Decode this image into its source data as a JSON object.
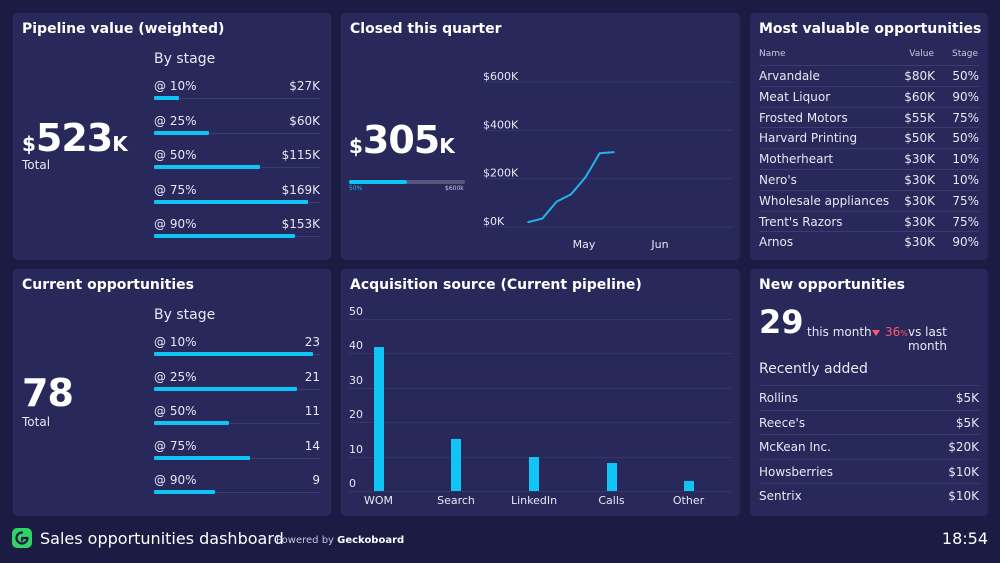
{
  "colors": {
    "background": "#1b1b44",
    "panel": "#28295a",
    "accent": "#0fc5f5",
    "down": "#ff5a6a",
    "logo": "#2fd463"
  },
  "pipeline": {
    "title": "Pipeline value (weighted)",
    "currency": "$",
    "value": "523",
    "suffix": "K",
    "total_label": "Total",
    "stage_head": "By stage",
    "stages": [
      {
        "label": "@ 10%",
        "value": "$27K",
        "frac": 0.15
      },
      {
        "label": "@ 25%",
        "value": "$60K",
        "frac": 0.33
      },
      {
        "label": "@ 50%",
        "value": "$115K",
        "frac": 0.64
      },
      {
        "label": "@ 75%",
        "value": "$169K",
        "frac": 0.93
      },
      {
        "label": "@ 90%",
        "value": "$153K",
        "frac": 0.85
      }
    ]
  },
  "closed": {
    "title": "Closed this quarter",
    "currency": "$",
    "value": "305",
    "suffix": "K",
    "progress": {
      "frac": 0.5,
      "start_label": "50%",
      "end_label": "$600k"
    },
    "chart_data": {
      "type": "line",
      "title": "Closed this quarter",
      "x": [
        "Apr 22",
        "Apr 26",
        "Apr 30",
        "May 4",
        "May 8",
        "May 12",
        "May 16"
      ],
      "values": [
        20,
        35,
        105,
        135,
        205,
        305,
        310
      ],
      "x_tick_labels": [
        "May",
        "Jun"
      ],
      "y_tick_labels": [
        "$600K",
        "$400K",
        "$200K",
        "$0K"
      ],
      "ylim": [
        0,
        600
      ]
    }
  },
  "valuable": {
    "title": "Most valuable opportunities",
    "headers": [
      "Name",
      "Value",
      "Stage"
    ],
    "rows": [
      {
        "name": "Arvandale",
        "value": "$80K",
        "stage": "50%"
      },
      {
        "name": "Meat Liquor",
        "value": "$60K",
        "stage": "90%"
      },
      {
        "name": "Frosted Motors",
        "value": "$55K",
        "stage": "75%"
      },
      {
        "name": "Harvard Printing",
        "value": "$50K",
        "stage": "50%"
      },
      {
        "name": "Motherheart",
        "value": "$30K",
        "stage": "10%"
      },
      {
        "name": "Nero's",
        "value": "$30K",
        "stage": "10%"
      },
      {
        "name": "Wholesale appliances",
        "value": "$30K",
        "stage": "75%"
      },
      {
        "name": "Trent's Razors",
        "value": "$30K",
        "stage": "75%"
      },
      {
        "name": "Arnos",
        "value": "$30K",
        "stage": "90%"
      }
    ]
  },
  "current": {
    "title": "Current opportunities",
    "value": "78",
    "total_label": "Total",
    "stage_head": "By stage",
    "stages": [
      {
        "label": "@ 10%",
        "value": "23",
        "frac": 0.96
      },
      {
        "label": "@ 25%",
        "value": "21",
        "frac": 0.86
      },
      {
        "label": "@ 50%",
        "value": "11",
        "frac": 0.45
      },
      {
        "label": "@ 75%",
        "value": "14",
        "frac": 0.58
      },
      {
        "label": "@ 90%",
        "value": "9",
        "frac": 0.37
      }
    ]
  },
  "acquisition": {
    "title": "Acquisition source (Current pipeline)",
    "chart_data": {
      "type": "bar",
      "title": "Acquisition source (Current pipeline)",
      "categories": [
        "WOM",
        "Search",
        "LinkedIn",
        "Calls",
        "Other"
      ],
      "values": [
        42,
        15,
        10,
        8,
        3
      ],
      "y_tick_labels": [
        "50",
        "40",
        "30",
        "20",
        "10",
        "0"
      ],
      "ylim": [
        0,
        50
      ]
    }
  },
  "newopp": {
    "title": "New opportunities",
    "count": "29",
    "count_label": "this month",
    "delta_icon": "down-triangle-icon",
    "delta_value": "36",
    "delta_unit": "%",
    "delta_label": "vs last month",
    "recent_title": "Recently added",
    "recent": [
      {
        "name": "Rollins",
        "value": "$5K"
      },
      {
        "name": "Reece's",
        "value": "$5K"
      },
      {
        "name": "McKean Inc.",
        "value": "$20K"
      },
      {
        "name": "Howsberries",
        "value": "$10K"
      },
      {
        "name": "Sentrix",
        "value": "$10K"
      }
    ]
  },
  "footer": {
    "logo_icon": "geckoboard-logo-icon",
    "title": "Sales opportunities dashboard",
    "powered_prefix": "Powered by ",
    "powered_brand": "Geckoboard",
    "time": "18:54"
  }
}
